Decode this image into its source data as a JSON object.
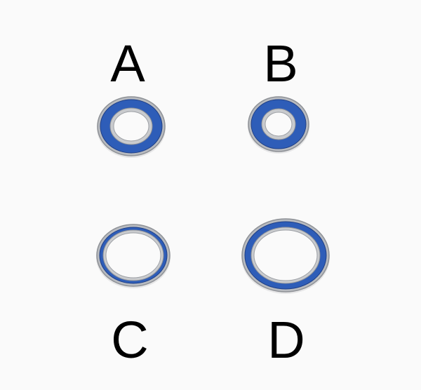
{
  "labels": {
    "a": "A",
    "b": "B",
    "c": "C",
    "d": "D"
  },
  "colors": {
    "seal": "#2e5db8",
    "seal_dark": "#1f3f86",
    "steel_outer": "#b8bbc0",
    "steel_inner": "#c9cbce",
    "background": "#fafafa"
  }
}
